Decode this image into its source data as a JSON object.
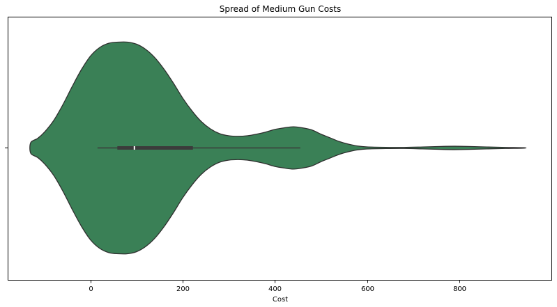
{
  "chart_data": {
    "type": "violin",
    "title": "Spread of Medium Gun Costs",
    "xlabel": "Cost",
    "ylabel": "",
    "xlim": [
      -180,
      1000
    ],
    "x_ticks": [
      0,
      200,
      400,
      600,
      800
    ],
    "x_tick_labels": [
      "0",
      "200",
      "400",
      "600",
      "800"
    ],
    "orientation": "horizontal",
    "fill_color": "#3a8056",
    "edge_color": "#2f2f2f",
    "grid": false,
    "legend": "none",
    "density_profile": [
      [
        -130,
        0.05
      ],
      [
        -115,
        0.09
      ],
      [
        -100,
        0.15
      ],
      [
        -80,
        0.26
      ],
      [
        -60,
        0.41
      ],
      [
        -40,
        0.58
      ],
      [
        -20,
        0.74
      ],
      [
        0,
        0.87
      ],
      [
        20,
        0.95
      ],
      [
        40,
        0.99
      ],
      [
        60,
        1.0
      ],
      [
        80,
        1.0
      ],
      [
        100,
        0.98
      ],
      [
        120,
        0.93
      ],
      [
        140,
        0.85
      ],
      [
        160,
        0.74
      ],
      [
        180,
        0.61
      ],
      [
        200,
        0.47
      ],
      [
        220,
        0.35
      ],
      [
        240,
        0.25
      ],
      [
        260,
        0.18
      ],
      [
        280,
        0.135
      ],
      [
        300,
        0.115
      ],
      [
        320,
        0.11
      ],
      [
        340,
        0.115
      ],
      [
        360,
        0.13
      ],
      [
        380,
        0.15
      ],
      [
        400,
        0.175
      ],
      [
        420,
        0.19
      ],
      [
        440,
        0.2
      ],
      [
        460,
        0.19
      ],
      [
        480,
        0.17
      ],
      [
        500,
        0.13
      ],
      [
        520,
        0.095
      ],
      [
        540,
        0.06
      ],
      [
        560,
        0.035
      ],
      [
        580,
        0.018
      ],
      [
        600,
        0.01
      ],
      [
        640,
        0.006
      ],
      [
        680,
        0.005
      ],
      [
        720,
        0.009
      ],
      [
        760,
        0.014
      ],
      [
        790,
        0.016
      ],
      [
        820,
        0.014
      ],
      [
        860,
        0.009
      ],
      [
        900,
        0.005
      ],
      [
        940,
        0.002
      ]
    ],
    "box": {
      "whisker_low": 15,
      "q1": 58,
      "median": 95,
      "q3": 222,
      "whisker_high": 455
    }
  }
}
